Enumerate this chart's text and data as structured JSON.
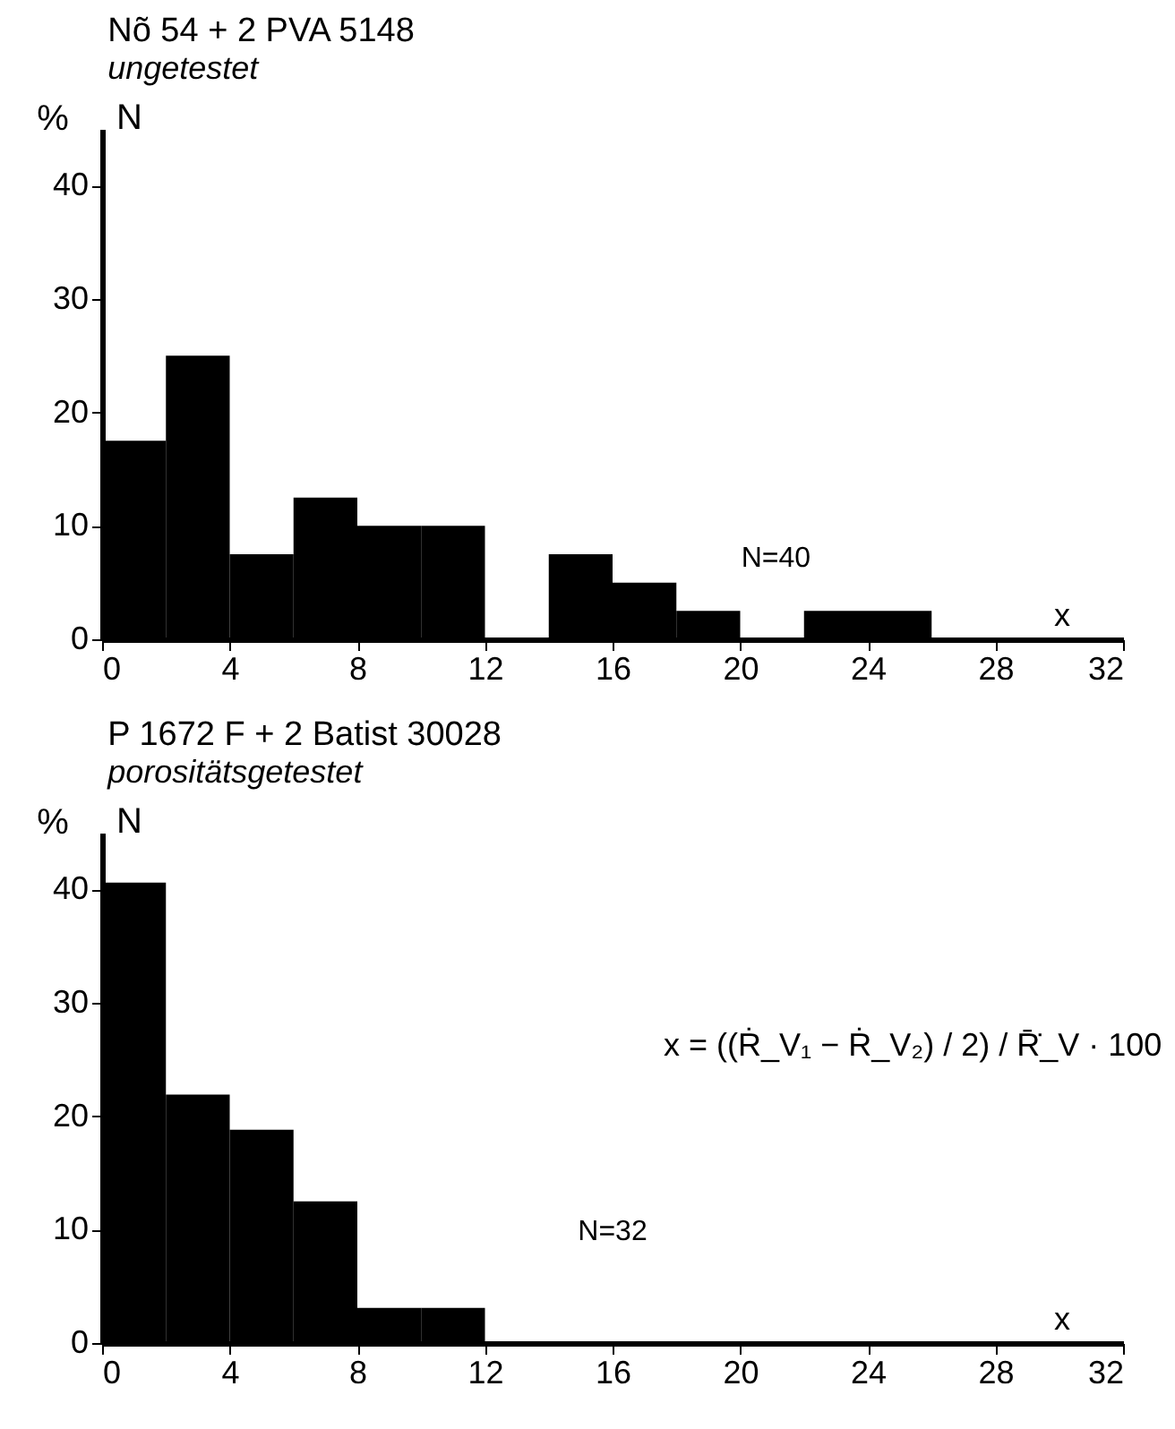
{
  "chart_data": [
    {
      "type": "histogram",
      "title": "Nõ 54 + 2 PVA 5148",
      "subtitle": "ungetestet",
      "xlabel": "x",
      "ylabel": "%",
      "annotations": [
        "N",
        "N=40"
      ],
      "bins": [
        0,
        2,
        4,
        6,
        8,
        10,
        12,
        14,
        16,
        18,
        20,
        22,
        24,
        26
      ],
      "values": [
        17.5,
        25,
        7.5,
        12.5,
        10,
        10,
        0,
        7.5,
        5,
        2.5,
        0,
        2.5,
        2.5
      ],
      "color": "#000000",
      "xlim": [
        0,
        32
      ],
      "xticks": [
        0,
        4,
        8,
        12,
        16,
        20,
        24,
        28,
        32
      ],
      "ylim": [
        0,
        45
      ],
      "yticks": [
        0,
        10,
        20,
        30,
        40
      ],
      "grid": false
    },
    {
      "type": "histogram",
      "title": "P 1672 F + 2 Batist 30028",
      "subtitle": "porositätsgetestet",
      "xlabel": "x",
      "ylabel": "%",
      "annotations": [
        "N",
        "N=32",
        "x = ((Ṙ_V₁ − Ṙ_V₂) / 2) / R̄̇_V · 100"
      ],
      "bins": [
        0,
        2,
        4,
        6,
        8,
        10,
        12
      ],
      "values": [
        40.6,
        21.9,
        18.8,
        12.5,
        3.1,
        3.1
      ],
      "color": "#000000",
      "xlim": [
        0,
        32
      ],
      "xticks": [
        0,
        4,
        8,
        12,
        16,
        20,
        24,
        28,
        32
      ],
      "ylim": [
        0,
        45
      ],
      "yticks": [
        0,
        10,
        20,
        30,
        40
      ],
      "grid": false
    }
  ]
}
